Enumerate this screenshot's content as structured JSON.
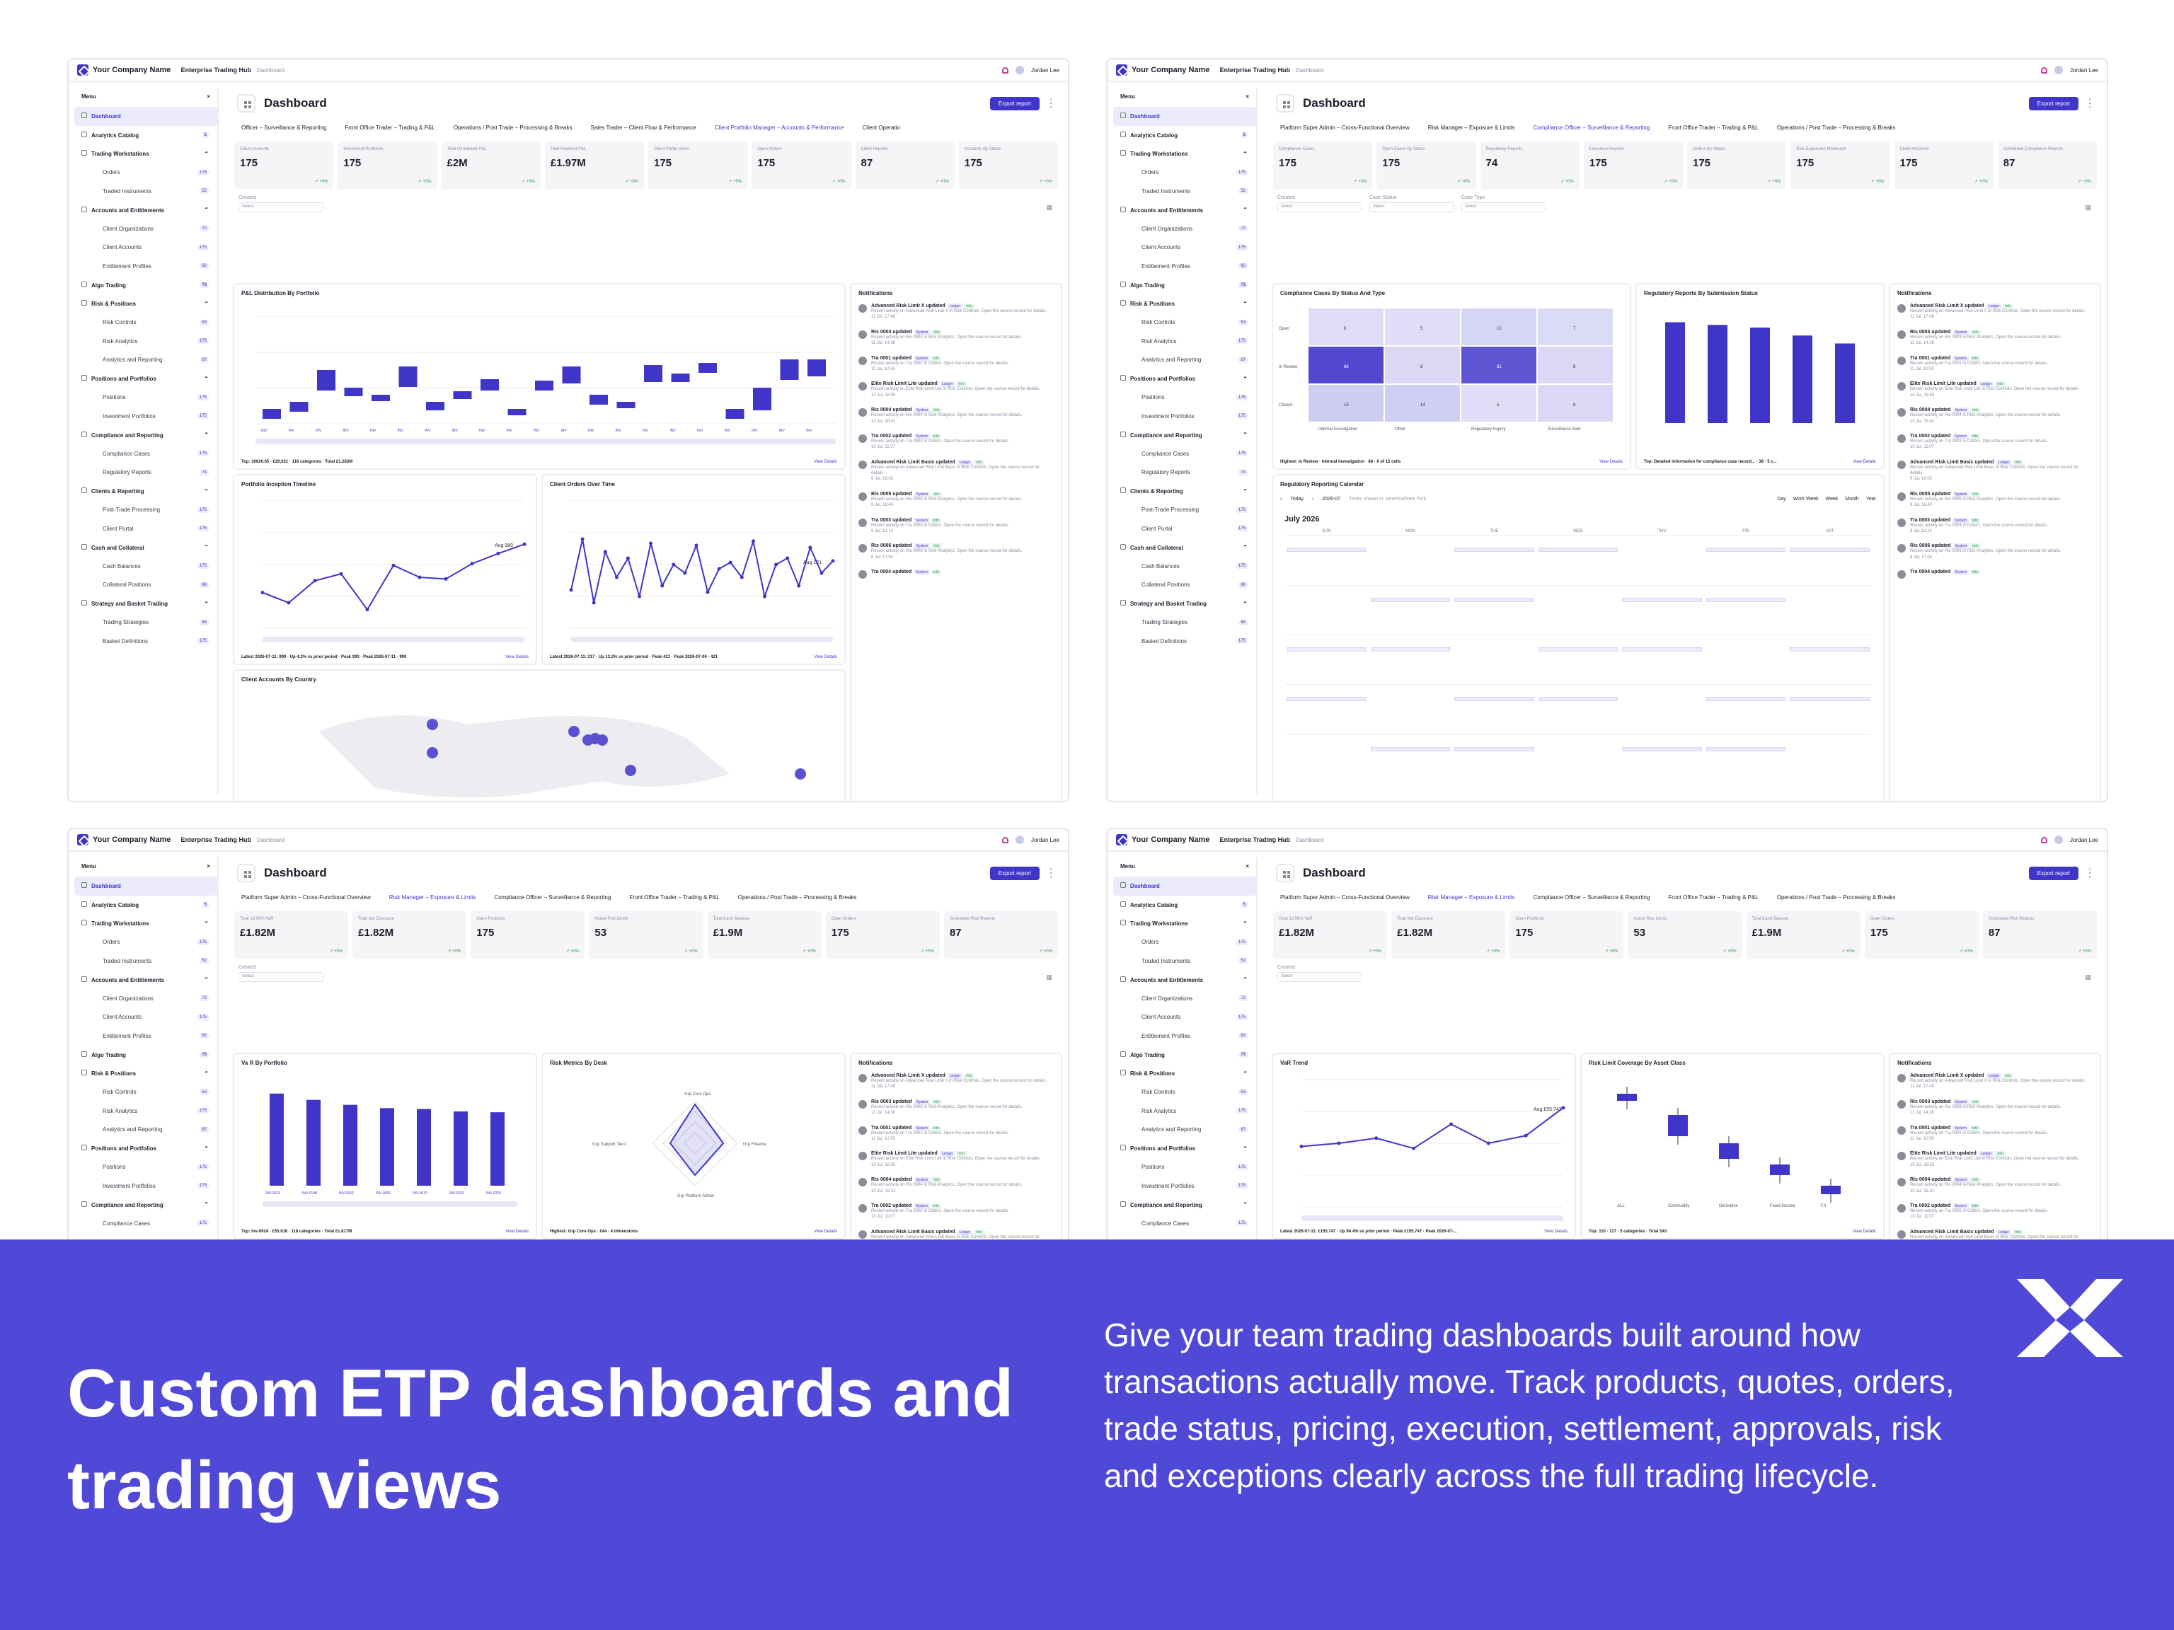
{
  "app": {
    "company": "Your Company Name",
    "hub": "Enterprise Trading Hub",
    "crumb": "Dashboard",
    "user": "Jordan Lee",
    "title": "Dashboard",
    "export_label": "Export report",
    "menu_label": "Menu",
    "created_label": "Created",
    "select_placeholder": "Select"
  },
  "sidebar": [
    {
      "label": "Dashboard",
      "level": 1,
      "active": true
    },
    {
      "label": "Analytics Catalog",
      "level": 1,
      "badge": "5"
    },
    {
      "label": "Trading Workstations",
      "level": 1
    },
    {
      "label": "Orders",
      "level": 2,
      "badge": "175"
    },
    {
      "label": "Traded Instruments",
      "level": 2,
      "badge": "52"
    },
    {
      "label": "Accounts and Entitlements",
      "level": 1
    },
    {
      "label": "Client Organizations",
      "level": 2,
      "badge": "72"
    },
    {
      "label": "Client Accounts",
      "level": 2,
      "badge": "175"
    },
    {
      "label": "Entitlement Profiles",
      "level": 2,
      "badge": "82"
    },
    {
      "label": "Algo Trading",
      "level": 1,
      "badge": "73"
    },
    {
      "label": "Risk & Positions",
      "level": 1
    },
    {
      "label": "Risk Controls",
      "level": 2,
      "badge": "53"
    },
    {
      "label": "Risk Analytics",
      "level": 2,
      "badge": "175"
    },
    {
      "label": "Analytics and Reporting",
      "level": 2,
      "badge": "87"
    },
    {
      "label": "Positions and Portfolios",
      "level": 1
    },
    {
      "label": "Positions",
      "level": 2,
      "badge": "175"
    },
    {
      "label": "Investment Portfolios",
      "level": 2,
      "badge": "175"
    },
    {
      "label": "Compliance and Reporting",
      "level": 1
    },
    {
      "label": "Compliance Cases",
      "level": 2,
      "badge": "175"
    },
    {
      "label": "Regulatory Reports",
      "level": 2,
      "badge": "74"
    },
    {
      "label": "Clients & Reporting",
      "level": 1
    },
    {
      "label": "Post-Trade Processing",
      "level": 2,
      "badge": "175"
    },
    {
      "label": "Client Portal",
      "level": 2,
      "badge": "175"
    },
    {
      "label": "Cash and Collateral",
      "level": 1
    },
    {
      "label": "Cash Balances",
      "level": 2,
      "badge": "175"
    },
    {
      "label": "Collateral Positions",
      "level": 2,
      "badge": "86"
    },
    {
      "label": "Strategy and Basket Trading",
      "level": 1
    },
    {
      "label": "Trading Strategies",
      "level": 2,
      "badge": "88"
    },
    {
      "label": "Basket Definitions",
      "level": 2,
      "badge": "175"
    }
  ],
  "frames": [
    {
      "tabs": [
        "Officer – Surveillance & Reporting",
        "Front Office Trader – Trading & P&L",
        "Operations / Post Trade – Processing & Breaks",
        "Sales Trader – Client Flow & Performance",
        "Client Portfolio Manager – Accounts & Performance",
        "Client Operatio"
      ],
      "active_tab": 4,
      "kpis": [
        {
          "label": "Client Accounts",
          "value": "175",
          "trend": "+0%"
        },
        {
          "label": "Investment Portfolios",
          "value": "175",
          "trend": "+0%"
        },
        {
          "label": "Total Unrealized P&L",
          "value": "£2M",
          "trend": "+0%"
        },
        {
          "label": "Total Realized P&L",
          "value": "£1.97M",
          "trend": "+0%"
        },
        {
          "label": "Client Portal Users",
          "value": "175",
          "trend": "+0%"
        },
        {
          "label": "Open Orders",
          "value": "175",
          "trend": "+0%"
        },
        {
          "label": "Client Reports",
          "value": "87",
          "trend": "+0%"
        },
        {
          "label": "Accounts By Status",
          "value": "175",
          "trend": "+0%"
        }
      ],
      "panels": [
        {
          "title": "P&L Distribution By Portfolio",
          "foot": "Top: 20620.65 - £20,621 · 118 categories · Total £1.283M",
          "link": "View Details"
        },
        {
          "title": "Portfolio Inception Timeline",
          "foot": "Latest 2026-07-11: 990 · Up 4.2% vs prior period · Peak 993 · Peak 2026-07-11 · 990",
          "link": "View Details",
          "ann": "Aug 980"
        },
        {
          "title": "Client Orders Over Time",
          "foot": "Latest 2026-07-11: 317 · Up 13.2% vs prior period · Peak 421 · Peak 2026-07-06 · 421",
          "link": "View Details",
          "ann": "Aug 121"
        },
        {
          "title": "Client Accounts By Country"
        }
      ]
    },
    {
      "tabs": [
        "Platform Super Admin – Cross-Functional Overview",
        "Risk Manager – Exposure & Limits",
        "Compliance Officer – Surveillance & Reporting",
        "Front Office Trader – Trading & P&L",
        "Operations / Post Trade – Processing & Breaks"
      ],
      "active_tab": 2,
      "kpis": [
        {
          "label": "Compliance Cases",
          "value": "175",
          "trend": "+0%"
        },
        {
          "label": "Open Cases By Status",
          "value": "175",
          "trend": "+0%"
        },
        {
          "label": "Regulatory Reports",
          "value": "74",
          "trend": "+0%"
        },
        {
          "label": "Execution Reports",
          "value": "175",
          "trend": "+0%"
        },
        {
          "label": "Orders By Status",
          "value": "175",
          "trend": "+0%"
        },
        {
          "label": "Risk Exposures Monitored",
          "value": "175",
          "trend": "+0%"
        },
        {
          "label": "Client Accounts",
          "value": "175",
          "trend": "+0%"
        },
        {
          "label": "Scheduled Compliance Reports",
          "value": "87",
          "trend": "+0%"
        }
      ],
      "filters": [
        "Created",
        "Case Status",
        "Case Type"
      ],
      "panels": [
        {
          "title": "Compliance Cases By Status And Type",
          "foot": "Highest: In Review · Internal Investigation · 88 · 6 of 12 cells",
          "link": "View Details"
        },
        {
          "title": "Regulatory Reports By Submission Status",
          "foot": "Top: Detailed information for compliance case record... · 38 · 5 c...",
          "link": "View Details"
        },
        {
          "title": "Regulatory Reporting Calendar",
          "foot": "When are regulatory reports being submitted over the year",
          "link": "View Details"
        }
      ],
      "heat": {
        "rows": [
          "Open",
          "In Review",
          "Closed"
        ],
        "cols": [
          "Internal Investigation",
          "Other",
          "Regulatory Inquiry",
          "Surveillance Alert"
        ],
        "values": [
          [
            6,
            5,
            10,
            7
          ],
          [
            88,
            8,
            81,
            8
          ],
          [
            15,
            14,
            5,
            8
          ]
        ]
      },
      "calendar": {
        "month": "July 2026",
        "today": "Today",
        "picker": "2026-07",
        "tz": "Times shown in: America/New York",
        "views": [
          "Day",
          "Work Week",
          "Week",
          "Month",
          "Year"
        ],
        "days": [
          "SUN",
          "MON",
          "TUE",
          "WED",
          "THU",
          "FRI",
          "SAT"
        ]
      }
    },
    {
      "tabs": [
        "Platform Super Admin – Cross-Functional Overview",
        "Risk Manager – Exposure & Limits",
        "Compliance Officer – Surveillance & Reporting",
        "Front Office Trader – Trading & P&L",
        "Operations / Post Trade – Processing & Breaks"
      ],
      "active_tab": 1,
      "kpis": [
        {
          "label": "Total 1d 99% VaR",
          "value": "£1.82M",
          "trend": "+0%"
        },
        {
          "label": "Total Net Exposure",
          "value": "£1.82M",
          "trend": "+0%"
        },
        {
          "label": "Open Positions",
          "value": "175",
          "trend": "+0%"
        },
        {
          "label": "Active Risk Limits",
          "value": "53",
          "trend": "+0%"
        },
        {
          "label": "Total Cash Balance",
          "value": "£1.9M",
          "trend": "+0%"
        },
        {
          "label": "Open Orders",
          "value": "175",
          "trend": "+0%"
        },
        {
          "label": "Scheduled Risk Reports",
          "value": "87",
          "trend": "+0%"
        }
      ],
      "panels": [
        {
          "title": "Va R By Portfolio",
          "foot": "Top: Inv-0024 · £55,816 · 118 categories · Total £1.817M",
          "link": "View Details"
        },
        {
          "title": "Risk Metrics By Desk",
          "foot": "Highest: Grp Core Ops · £44 · 4 dimensions",
          "link": "View Details"
        }
      ],
      "radar": {
        "axes": [
          "Grp Core Ops",
          "Grp Finance",
          "Grp Platform Admin",
          "Grp Support Tier1"
        ]
      }
    },
    {
      "tabs": [
        "Platform Super Admin – Cross-Functional Overview",
        "Risk Manager – Exposure & Limits",
        "Compliance Officer – Surveillance & Reporting",
        "Front Office Trader – Trading & P&L",
        "Operations / Post Trade – Processing & Breaks"
      ],
      "active_tab": 1,
      "kpis": [
        {
          "label": "Total 1d 99% VaR",
          "value": "£1.82M",
          "trend": "+0%"
        },
        {
          "label": "Total Net Exposure",
          "value": "£1.82M",
          "trend": "+0%"
        },
        {
          "label": "Open Positions",
          "value": "175",
          "trend": "+0%"
        },
        {
          "label": "Active Risk Limits",
          "value": "53",
          "trend": "+0%"
        },
        {
          "label": "Total Cash Balance",
          "value": "£1.9M",
          "trend": "+0%"
        },
        {
          "label": "Open Orders",
          "value": "175",
          "trend": "+0%"
        },
        {
          "label": "Scheduled Risk Reports",
          "value": "87",
          "trend": "+0%"
        }
      ],
      "panels": [
        {
          "title": "VaR Trend",
          "foot": "Latest 2026-07-11: £155,747 · Up 94.4% vs prior period · Peak £155,747 · Peak 2026-07-...",
          "link": "View Details",
          "ann": "Aug £55,747"
        },
        {
          "title": "Risk Limit Coverage By Asset Class",
          "foot": "Top: 110 · 117 · 5 categories · Total 543",
          "link": "View Details"
        }
      ],
      "box_cats": [
        "ALL",
        "Commodity",
        "Derivative",
        "Fixed Income",
        "FX"
      ]
    }
  ],
  "notifications": [
    {
      "title": "Advanced Risk Limit X updated",
      "tags": [
        "Ledger",
        "Info"
      ],
      "body": "Recent activity on Advanced Risk Limit X in Risk Controls. Open the source record for details.",
      "time": "11 Jul, 17:48"
    },
    {
      "title": "Ris 0003 updated",
      "tags": [
        "System",
        "Info"
      ],
      "body": "Recent activity on Ris 0003 in Risk Analytics. Open the source record for details.",
      "time": "11 Jul, 14:38"
    },
    {
      "title": "Tra 0001 updated",
      "tags": [
        "System",
        "Info"
      ],
      "body": "Recent activity on Tra 0001 in Orders. Open the source record for details.",
      "time": "11 Jul, 10:50"
    },
    {
      "title": "Elite Risk Limit Lite updated",
      "tags": [
        "Ledger",
        "Info"
      ],
      "body": "Recent activity on Elite Risk Limit Lite in Risk Controls. Open the source record for details.",
      "time": "10 Jul, 18:55"
    },
    {
      "title": "Ris 0004 updated",
      "tags": [
        "System",
        "Info"
      ],
      "body": "Recent activity on Ris 0004 in Risk Analytics. Open the source record for details.",
      "time": "10 Jul, 15:41"
    },
    {
      "title": "Tra 0002 updated",
      "tags": [
        "System",
        "Info"
      ],
      "body": "Recent activity on Tra 0002 in Orders. Open the source record for details.",
      "time": "10 Jul, 11:07"
    },
    {
      "title": "Advanced Risk Limit Basic updated",
      "tags": [
        "Ledger",
        "Info"
      ],
      "body": "Recent activity on Advanced Risk Limit Basic in Risk Controls. Open the source record for details.",
      "time": "9 Jul, 19:03"
    },
    {
      "title": "Ris 0005 updated",
      "tags": [
        "System",
        "Info"
      ],
      "body": "Recent activity on Ris 0005 in Risk Analytics. Open the source record for details.",
      "time": "9 Jul, 16:40"
    },
    {
      "title": "Tra 0003 updated",
      "tags": [
        "System",
        "Info"
      ],
      "body": "Recent activity on Tra 0003 in Orders. Open the source record for details.",
      "time": "9 Jul, 12:14"
    },
    {
      "title": "Ris 0006 updated",
      "tags": [
        "System",
        "Info"
      ],
      "body": "Recent activity on Ris 0006 in Risk Analytics. Open the source record for details.",
      "time": "8 Jul, 17:04"
    },
    {
      "title": "Tra 0004 updated",
      "tags": [
        "System",
        "Info"
      ],
      "body": "",
      "time": ""
    }
  ],
  "notif_title": "Notifications",
  "banner": {
    "headline": "Custom ETP dashboards and trading views",
    "text": "Give your team trading dashboards built around how transactions actually move. Track products, quotes, orders, trade status, pricing, execution, settlement, approvals, risk and exceptions clearly across the full trading lifecycle."
  },
  "colors": {
    "accent": "#3f35c9",
    "banner": "#5048d6"
  },
  "chart_data": [
    {
      "type": "bar",
      "title": "Va R By Portfolio",
      "categories": [
        "INV-0024",
        "INV-0148",
        "INV-0166",
        "INV-0082",
        "INV-0070",
        "INV-0210",
        "INV-0226"
      ],
      "values": [
        55816,
        52000,
        49000,
        47000,
        46500,
        45000,
        44500
      ],
      "ylim": [
        0,
        60000
      ]
    },
    {
      "type": "bar",
      "title": "Regulatory Reports By Submission Status",
      "values": [
        38,
        37,
        36,
        33,
        30
      ],
      "ylim": [
        0,
        40
      ]
    },
    {
      "type": "line",
      "title": "Portfolio Inception Timeline",
      "x": [
        "2026-07-01",
        "2026-07-02",
        "2026-07-03",
        "2026-07-04",
        "2026-07-05",
        "2026-07-06",
        "2026-07-07",
        "2026-07-08",
        "2026-07-09",
        "2026-07-10",
        "2026-07-11"
      ],
      "values": [
        420,
        300,
        560,
        640,
        220,
        740,
        600,
        580,
        760,
        880,
        990
      ],
      "ylim": [
        0,
        1500
      ]
    },
    {
      "type": "line",
      "title": "VaR Trend",
      "x": [
        "2026-07-04",
        "2026-07-05",
        "2026-07-06",
        "2026-07-07",
        "2026-07-08",
        "2026-07-09",
        "2026-07-10",
        "2026-07-11"
      ],
      "values": [
        95000,
        100000,
        108000,
        92000,
        130000,
        100000,
        112000,
        155747
      ],
      "ylim": [
        0,
        200000
      ]
    }
  ]
}
